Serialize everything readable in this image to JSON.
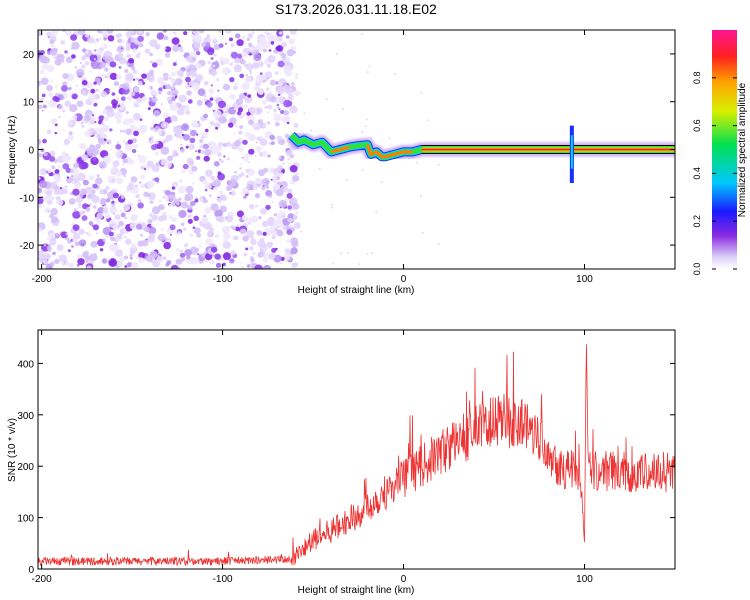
{
  "title": "S173.2026.031.11.18.E02",
  "chart_data": [
    {
      "type": "heatmap",
      "title": "S173.2026.031.11.18.E02",
      "xlabel": "Height of straight line (km)",
      "ylabel": "Frequency (Hz)",
      "xlim": [
        -202,
        150
      ],
      "ylim": [
        -25,
        25
      ],
      "xticks": [
        -200,
        -100,
        0,
        100
      ],
      "yticks": [
        -20,
        -10,
        0,
        10,
        20
      ],
      "noise_region_x": [
        -202,
        -62
      ],
      "ridge": {
        "x": [
          -62,
          -58,
          -55,
          -50,
          -45,
          -40,
          -35,
          -30,
          -25,
          -20,
          -18,
          -15,
          -12,
          -10,
          -5,
          0,
          5,
          10,
          15,
          20,
          40,
          60,
          80,
          88,
          90,
          92,
          100,
          120,
          150
        ],
        "freq_hz": [
          3.0,
          1.5,
          2.0,
          1.0,
          1.5,
          -0.5,
          0.0,
          0.5,
          0.8,
          1.0,
          -1.0,
          -0.5,
          -1.5,
          -1.5,
          -1.0,
          -0.5,
          -0.5,
          0.0,
          0.0,
          0.0,
          0.0,
          0.0,
          0.0,
          0.0,
          0.0,
          0.0,
          0.0,
          0.0,
          0.0
        ]
      },
      "spike_x": 93,
      "colorbar": {
        "label": "Normalized spectral amplitude",
        "range": [
          0.0,
          1.0
        ],
        "ticks": [
          0.0,
          0.2,
          0.4,
          0.6,
          0.8
        ]
      }
    },
    {
      "type": "line",
      "xlabel": "Height of straight line (km)",
      "ylabel": "SNR (10 * v/v)",
      "xlim": [
        -202,
        150
      ],
      "ylim": [
        0,
        465
      ],
      "xticks": [
        -200,
        -100,
        0,
        100
      ],
      "yticks": [
        0,
        100,
        200,
        300,
        400
      ],
      "color": "#ee3333",
      "trend": {
        "x": [
          -202,
          -150,
          -100,
          -70,
          -62,
          -58,
          -50,
          -40,
          -30,
          -20,
          -10,
          0,
          10,
          20,
          30,
          40,
          50,
          60,
          70,
          75,
          80,
          85,
          90,
          95,
          98,
          100,
          101,
          102,
          105,
          110,
          120,
          130,
          140,
          150
        ],
        "snr": [
          15,
          15,
          15,
          18,
          20,
          30,
          55,
          75,
          95,
          120,
          150,
          175,
          200,
          225,
          250,
          270,
          285,
          290,
          275,
          260,
          235,
          205,
          195,
          190,
          175,
          50,
          460,
          210,
          190,
          190,
          190,
          185,
          190,
          190
        ]
      }
    }
  ]
}
